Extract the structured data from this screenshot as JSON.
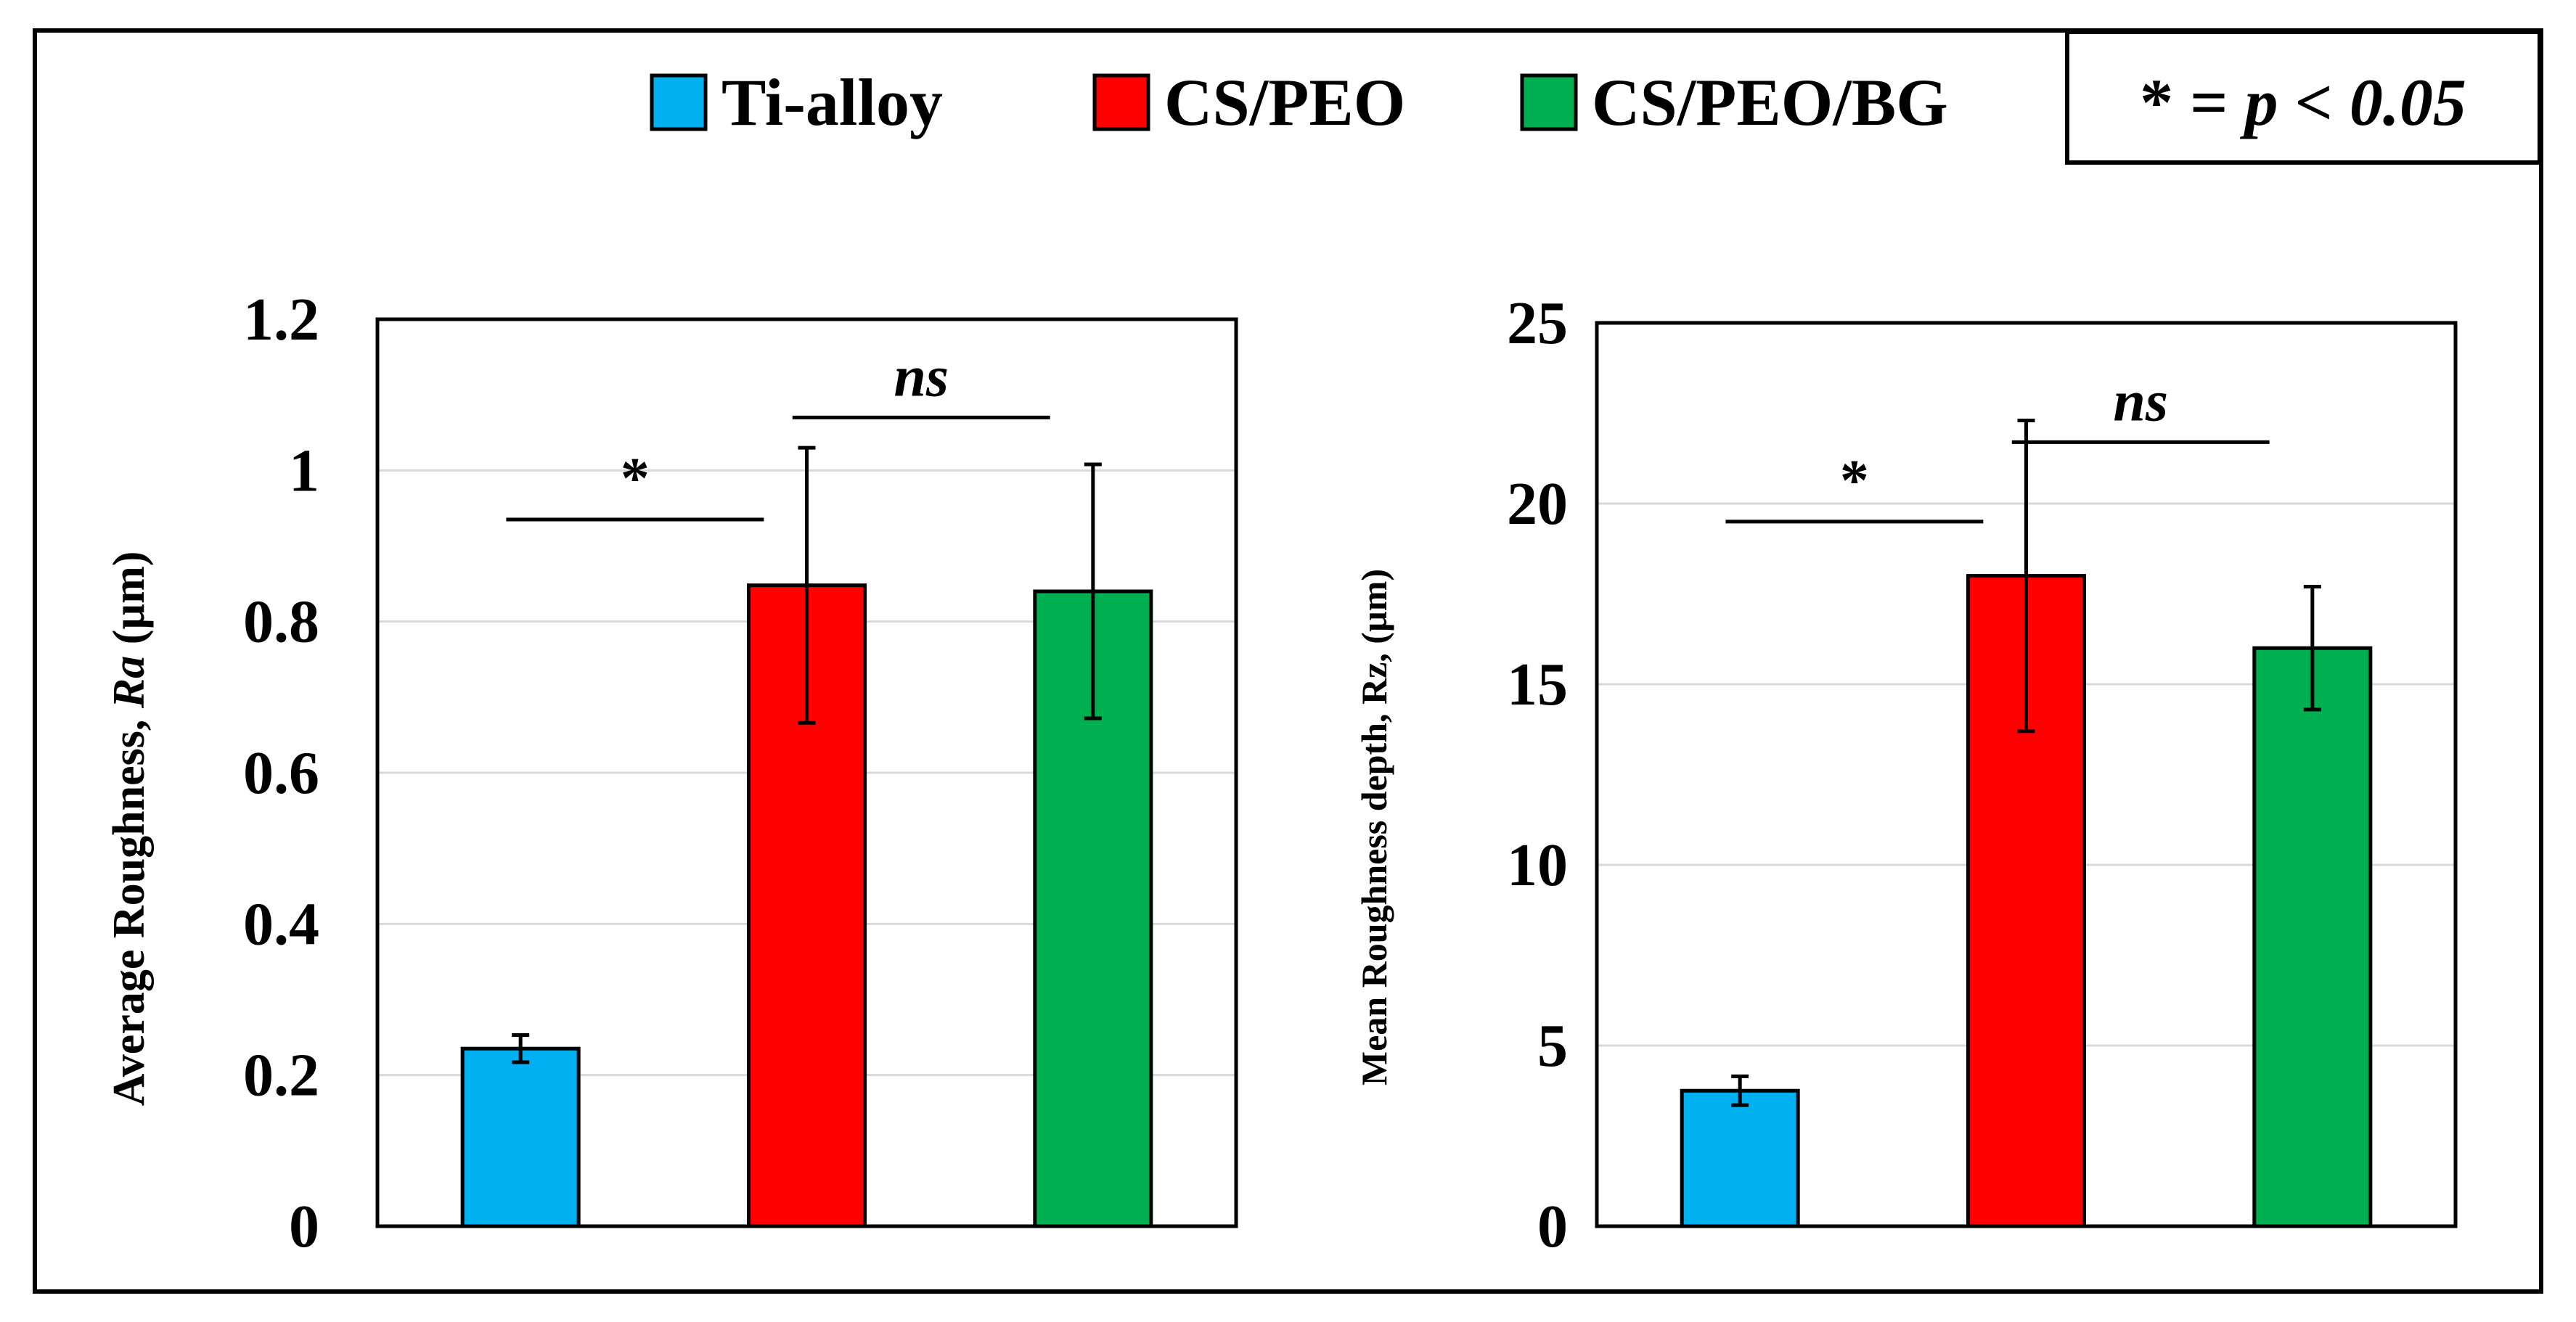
{
  "legend": {
    "entries": [
      {
        "label": "Ti-alloy",
        "color": "#00B0F0"
      },
      {
        "label": "CS/PEO",
        "color": "#FF0000"
      },
      {
        "label": "CS/PEO/BG",
        "color": "#00B050"
      }
    ]
  },
  "significance_box": {
    "star": "*",
    "equals": " = ",
    "text": "p < 0.05"
  },
  "chart_data": [
    {
      "type": "bar",
      "title": "",
      "categories": [
        "Ti-alloy",
        "CS/PEO",
        "CS/PEO/BG"
      ],
      "values": [
        0.235,
        0.848,
        0.84
      ],
      "errors": [
        0.018,
        0.182,
        0.168
      ],
      "colors": [
        "#00B0F0",
        "#FF0000",
        "#00B050"
      ],
      "ylabel_main": "Average Roughness, ",
      "ylabel_italic": "Ra",
      "ylabel_unit": " (µm)",
      "ylim": [
        0,
        1.2
      ],
      "yticks": [
        0,
        0.2,
        0.4,
        0.6,
        0.8,
        1,
        1.2
      ],
      "ytick_labels": [
        "0",
        "0.2",
        "0.4",
        "0.6",
        "0.8",
        "1",
        "1.2"
      ],
      "grid": true,
      "annotations": [
        {
          "text": "*",
          "from": 0,
          "to": 1,
          "level": 0.935,
          "italic": false
        },
        {
          "text": "ns",
          "from": 1,
          "to": 2,
          "level": 1.07,
          "italic": true
        }
      ]
    },
    {
      "type": "bar",
      "title": "",
      "categories": [
        "Ti-alloy",
        "CS/PEO",
        "CS/PEO/BG"
      ],
      "values": [
        3.75,
        18.0,
        16.0
      ],
      "errors": [
        0.4,
        4.3,
        1.7
      ],
      "colors": [
        "#00B0F0",
        "#FF0000",
        "#00B050"
      ],
      "ylabel_main": "Mean Roughness depth, Rz, ",
      "ylabel_italic": "",
      "ylabel_unit": "(µm)",
      "ylim": [
        0,
        25
      ],
      "yticks": [
        0,
        5,
        10,
        15,
        20,
        25
      ],
      "ytick_labels": [
        "0",
        "5",
        "10",
        "15",
        "20",
        "25"
      ],
      "grid": true,
      "annotations": [
        {
          "text": "*",
          "from": 0,
          "to": 1,
          "level": 19.5,
          "italic": false
        },
        {
          "text": "ns",
          "from": 1,
          "to": 2,
          "level": 21.7,
          "italic": true
        }
      ]
    }
  ]
}
